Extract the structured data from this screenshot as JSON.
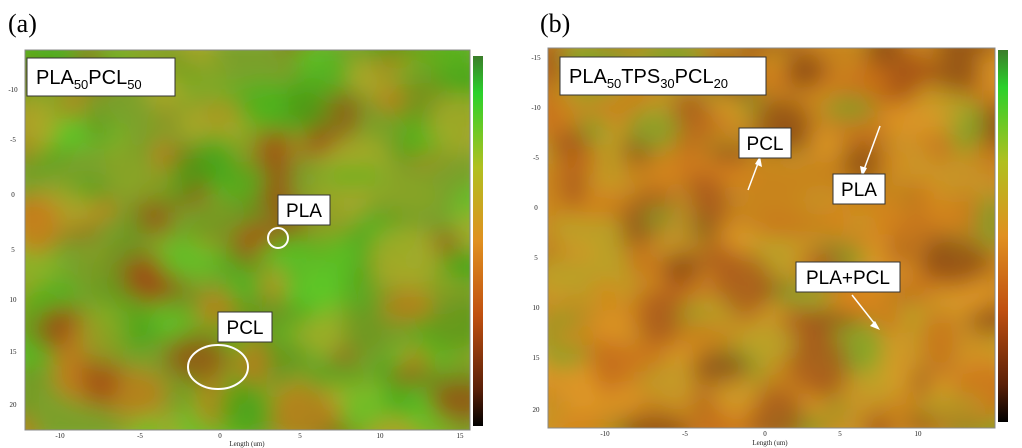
{
  "panels": [
    {
      "label": "(a)",
      "title": [
        {
          "text": "PLA",
          "sub": false
        },
        {
          "text": "50",
          "sub": true
        },
        {
          "text": "PCL",
          "sub": false
        },
        {
          "text": "50",
          "sub": true
        }
      ],
      "annotations": [
        {
          "text": "PLA"
        },
        {
          "text": "PCL"
        }
      ],
      "y_ticks": [
        "-10",
        "-5",
        "0",
        "5",
        "10",
        "15",
        "20"
      ],
      "x_ticks": [
        "-10",
        "-5",
        "0",
        "5",
        "10",
        "15"
      ],
      "x_label": "Length (um)"
    },
    {
      "label": "(b)",
      "title": [
        {
          "text": "PLA",
          "sub": false
        },
        {
          "text": "50",
          "sub": true
        },
        {
          "text": "TPS",
          "sub": false
        },
        {
          "text": "30",
          "sub": true
        },
        {
          "text": "PCL",
          "sub": false
        },
        {
          "text": "20",
          "sub": true
        }
      ],
      "annotations": [
        {
          "text": "PCL"
        },
        {
          "text": "PLA"
        },
        {
          "text": "PLA+PCL"
        }
      ],
      "y_ticks": [
        "-15",
        "-10",
        "-5",
        "0",
        "5",
        "10",
        "15",
        "20"
      ],
      "x_ticks": [
        "-10",
        "-5",
        "0",
        "5",
        "10"
      ],
      "x_label": "Length (um)"
    }
  ]
}
